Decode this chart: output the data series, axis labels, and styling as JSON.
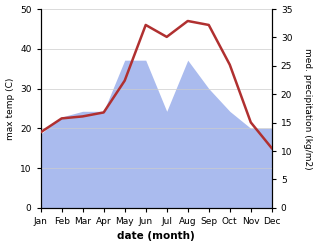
{
  "months": [
    "Jan",
    "Feb",
    "Mar",
    "Apr",
    "May",
    "Jun",
    "Jul",
    "Aug",
    "Sep",
    "Oct",
    "Nov",
    "Dec"
  ],
  "max_temp": [
    19.0,
    22.5,
    23.0,
    24.0,
    32.0,
    46.0,
    43.0,
    47.0,
    46.0,
    36.0,
    21.5,
    15.0
  ],
  "precipitation": [
    13.0,
    16.0,
    17.0,
    17.0,
    26.0,
    26.0,
    17.0,
    26.0,
    21.0,
    17.0,
    14.0,
    14.0
  ],
  "temp_ylim": [
    0,
    50
  ],
  "precip_ylim": [
    0,
    35
  ],
  "temp_yticks": [
    0,
    10,
    20,
    30,
    40,
    50
  ],
  "precip_yticks": [
    0,
    5,
    10,
    15,
    20,
    25,
    30,
    35
  ],
  "area_color": "#aabbee",
  "area_alpha": 1.0,
  "line_color": "#b03030",
  "line_width": 1.8,
  "ylabel_left": "max temp (C)",
  "ylabel_right": "med. precipitation (kg/m2)",
  "xlabel": "date (month)",
  "background_color": "#ffffff"
}
